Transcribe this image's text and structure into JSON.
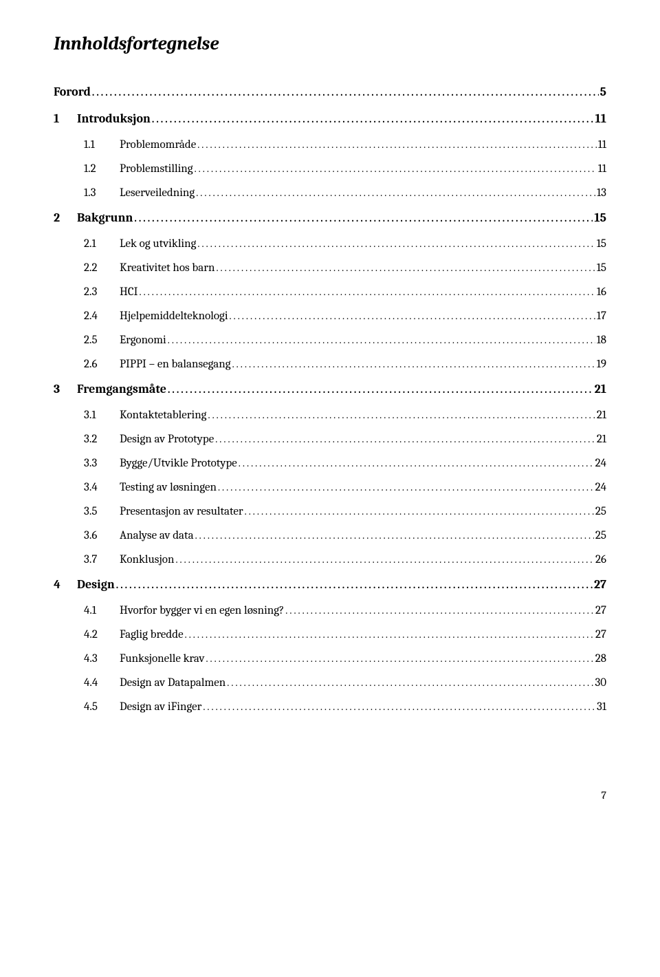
{
  "title": "Innholdsfortegnelse",
  "page_number": "7",
  "leader": "..................................................................................................................................................................................................................................................",
  "toc": [
    {
      "level": 0,
      "num": "",
      "label": "Forord",
      "page": "5"
    },
    {
      "level": 0,
      "num": "1",
      "label": "Introduksjon",
      "page": "11"
    },
    {
      "level": 1,
      "num": "1.1",
      "label": "Problemområde",
      "page": "11"
    },
    {
      "level": 1,
      "num": "1.2",
      "label": "Problemstilling",
      "page": "11"
    },
    {
      "level": 1,
      "num": "1.3",
      "label": "Leserveiledning",
      "page": "13"
    },
    {
      "level": 0,
      "num": "2",
      "label": "Bakgrunn",
      "page": "15"
    },
    {
      "level": 1,
      "num": "2.1",
      "label": "Lek og utvikling",
      "page": "15"
    },
    {
      "level": 1,
      "num": "2.2",
      "label": "Kreativitet hos barn",
      "page": "15"
    },
    {
      "level": 1,
      "num": "2.3",
      "label": "HCI",
      "page": "16"
    },
    {
      "level": 1,
      "num": "2.4",
      "label": "Hjelpemiddelteknologi",
      "page": "17"
    },
    {
      "level": 1,
      "num": "2.5",
      "label": "Ergonomi",
      "page": "18"
    },
    {
      "level": 1,
      "num": "2.6",
      "label": "PIPPI – en balansegang",
      "page": "19"
    },
    {
      "level": 0,
      "num": "3",
      "label": "Fremgangsmåte",
      "page": "21"
    },
    {
      "level": 1,
      "num": "3.1",
      "label": "Kontaktetablering",
      "page": "21"
    },
    {
      "level": 1,
      "num": "3.2",
      "label": "Design av Prototype",
      "page": "21"
    },
    {
      "level": 1,
      "num": "3.3",
      "label": "Bygge/Utvikle Prototype",
      "page": "24"
    },
    {
      "level": 1,
      "num": "3.4",
      "label": "Testing av løsningen",
      "page": "24"
    },
    {
      "level": 1,
      "num": "3.5",
      "label": "Presentasjon av resultater",
      "page": "25"
    },
    {
      "level": 1,
      "num": "3.6",
      "label": "Analyse av data",
      "page": "25"
    },
    {
      "level": 1,
      "num": "3.7",
      "label": "Konklusjon",
      "page": "26"
    },
    {
      "level": 0,
      "num": "4",
      "label": "Design",
      "page": "27"
    },
    {
      "level": 1,
      "num": "4.1",
      "label": "Hvorfor bygger vi en egen løsning?",
      "page": "27"
    },
    {
      "level": 1,
      "num": "4.2",
      "label": "Faglig bredde",
      "page": "27"
    },
    {
      "level": 1,
      "num": "4.3",
      "label": "Funksjonelle krav",
      "page": "28"
    },
    {
      "level": 1,
      "num": "4.4",
      "label": "Design av Datapalmen",
      "page": "30"
    },
    {
      "level": 1,
      "num": "4.5",
      "label": "Design av iFinger",
      "page": "31"
    }
  ]
}
